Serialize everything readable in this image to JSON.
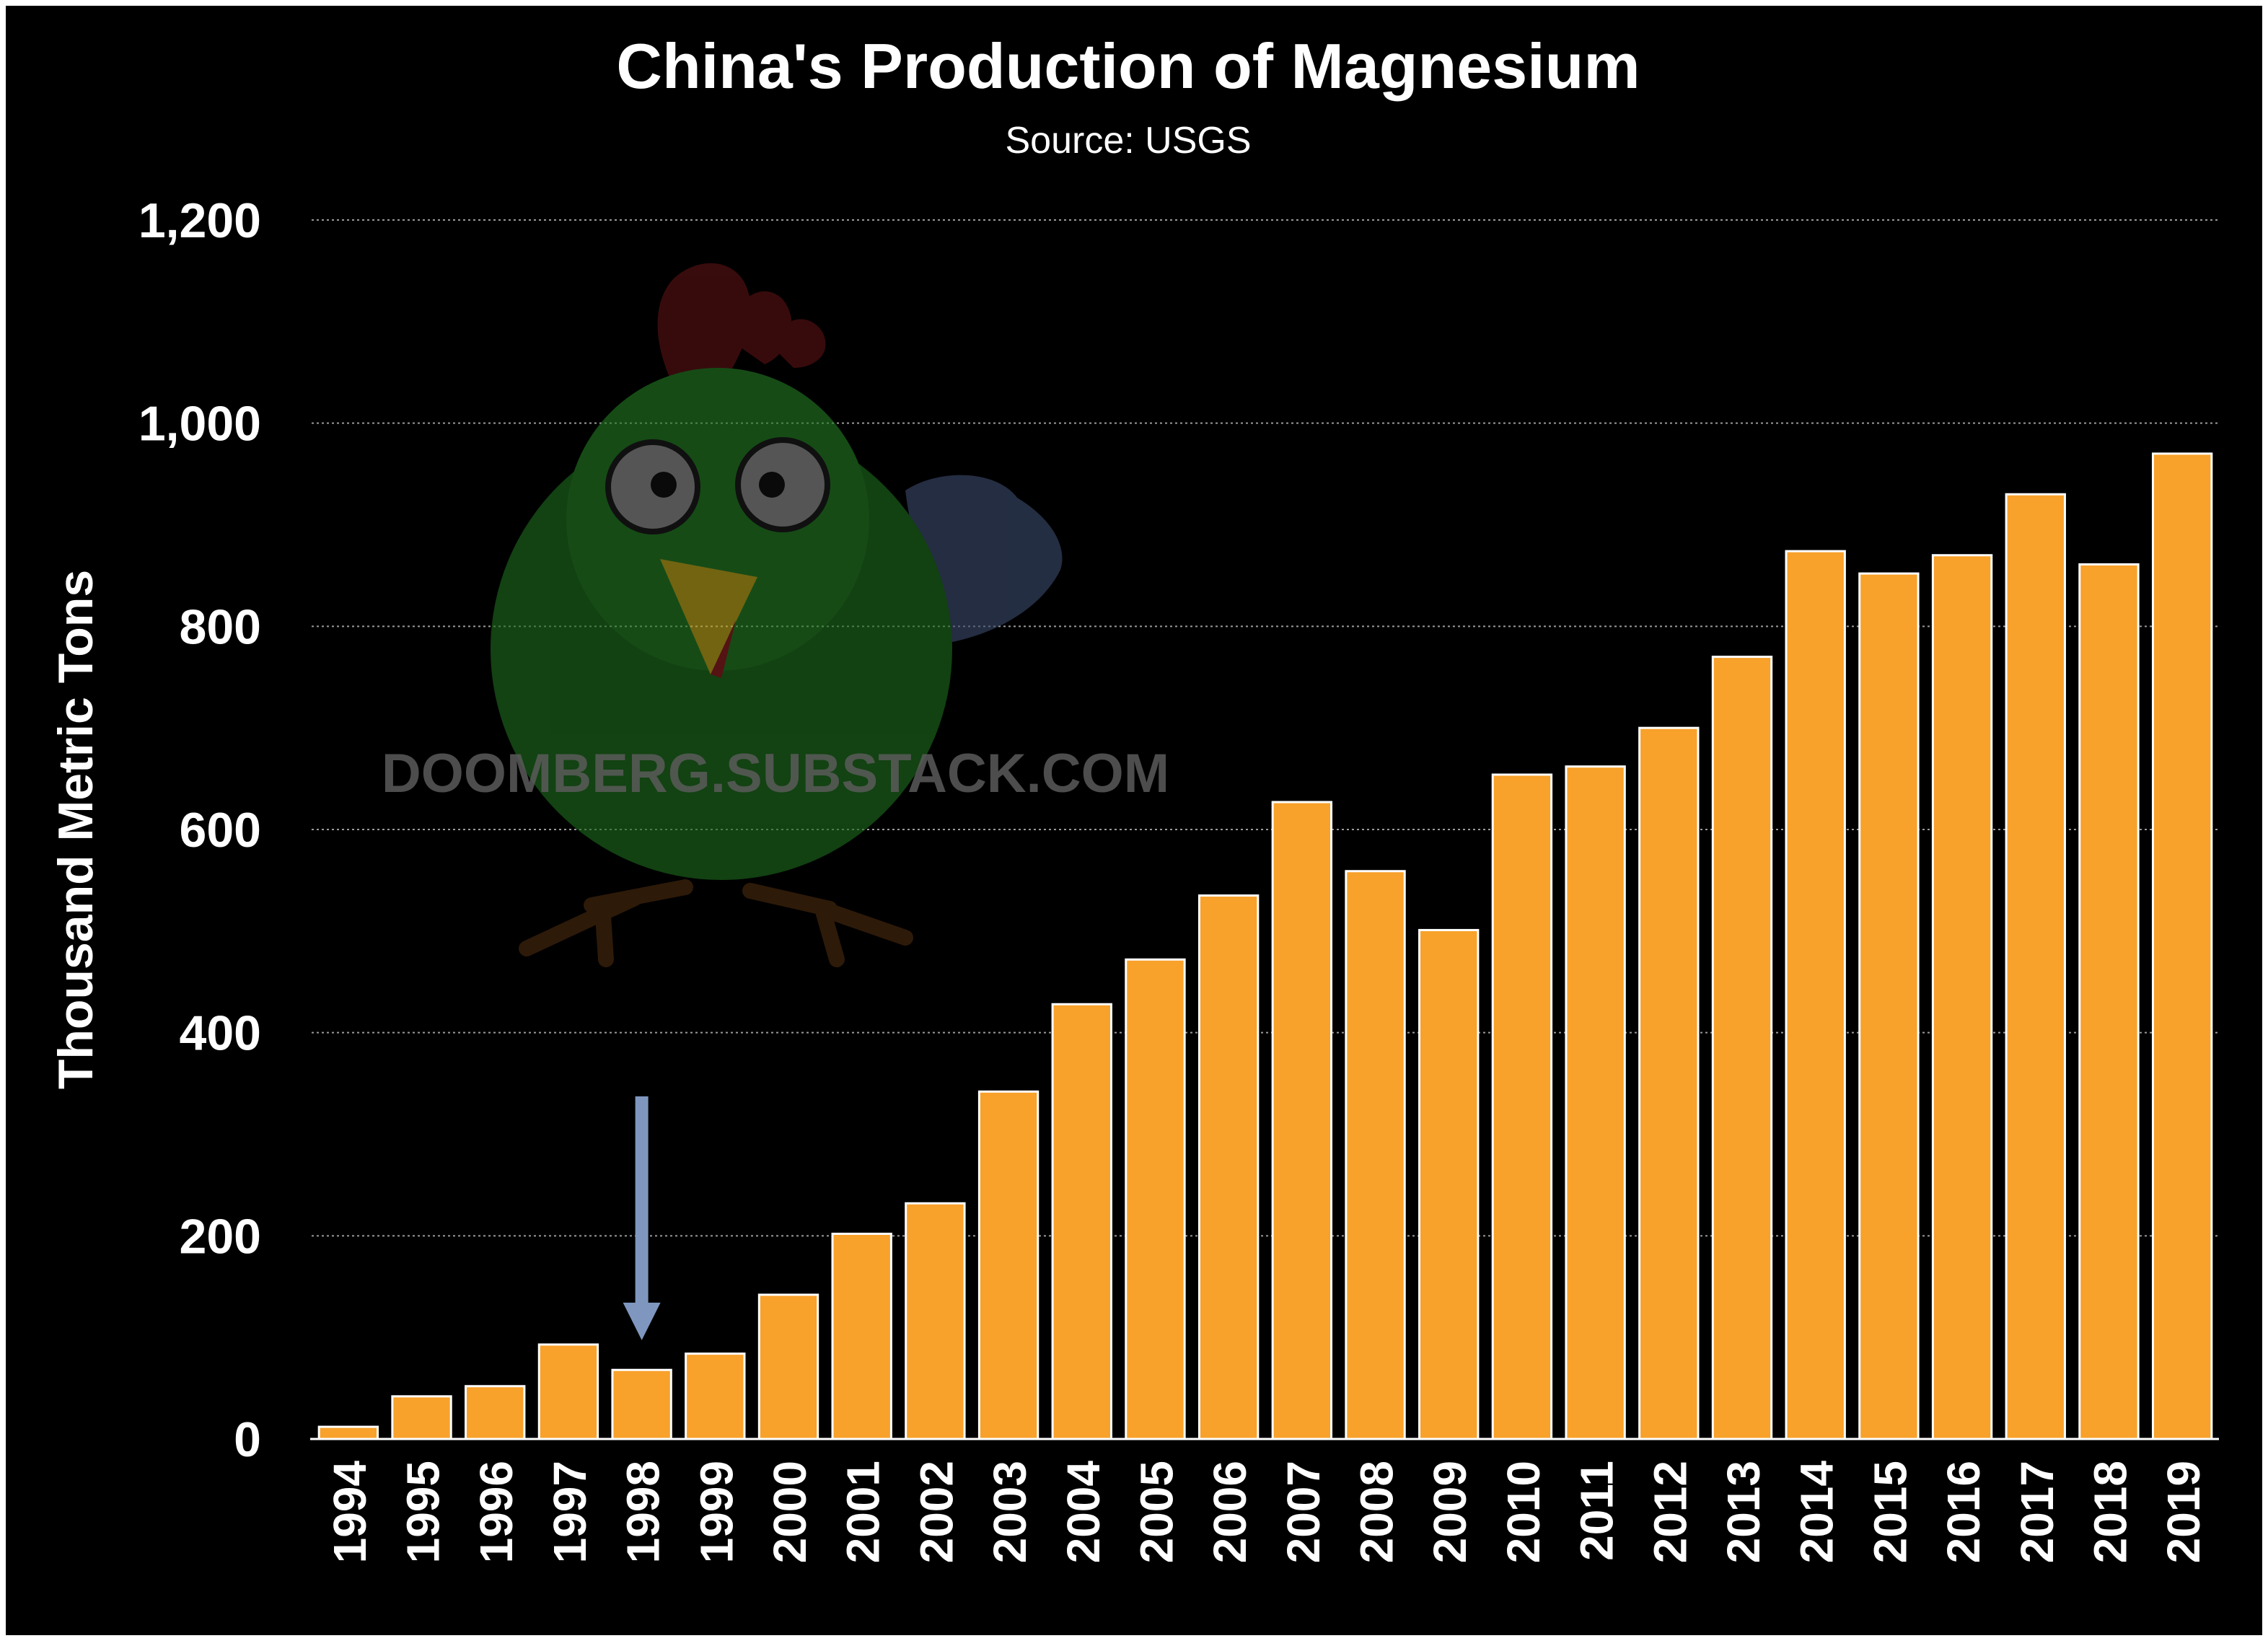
{
  "chart_data": {
    "type": "bar",
    "title": "China's Production of Magnesium",
    "subtitle": "Source: USGS",
    "ylabel": "Thousand Metric Tons",
    "xlabel": "",
    "ylim": [
      0,
      1200
    ],
    "yticks": [
      0,
      200,
      400,
      600,
      800,
      1000,
      1200
    ],
    "ytick_labels": [
      "0",
      "200",
      "400",
      "600",
      "800",
      "1,000",
      "1,200"
    ],
    "grid": "horizontal dotted",
    "categories": [
      "1994",
      "1995",
      "1996",
      "1997",
      "1998",
      "1999",
      "2000",
      "2001",
      "2002",
      "2003",
      "2004",
      "2005",
      "2006",
      "2007",
      "2008",
      "2009",
      "2010",
      "2011",
      "2012",
      "2013",
      "2014",
      "2015",
      "2016",
      "2017",
      "2018",
      "2019"
    ],
    "values": [
      12,
      42,
      52,
      93,
      68,
      84,
      142,
      202,
      232,
      342,
      428,
      472,
      535,
      627,
      559,
      501,
      654,
      662,
      700,
      770,
      874,
      852,
      870,
      930,
      861,
      970
    ],
    "annotation": {
      "type": "down-arrow",
      "category": "1998"
    },
    "bar_color": "#f8a12b",
    "bar_stroke": "#ffffff",
    "background": "#000000",
    "arrow_color": "#7f97bf"
  },
  "watermark": {
    "text": "DOOMBERG.SUBSTACK.COM",
    "icon": "chicken-mascot-icon"
  }
}
